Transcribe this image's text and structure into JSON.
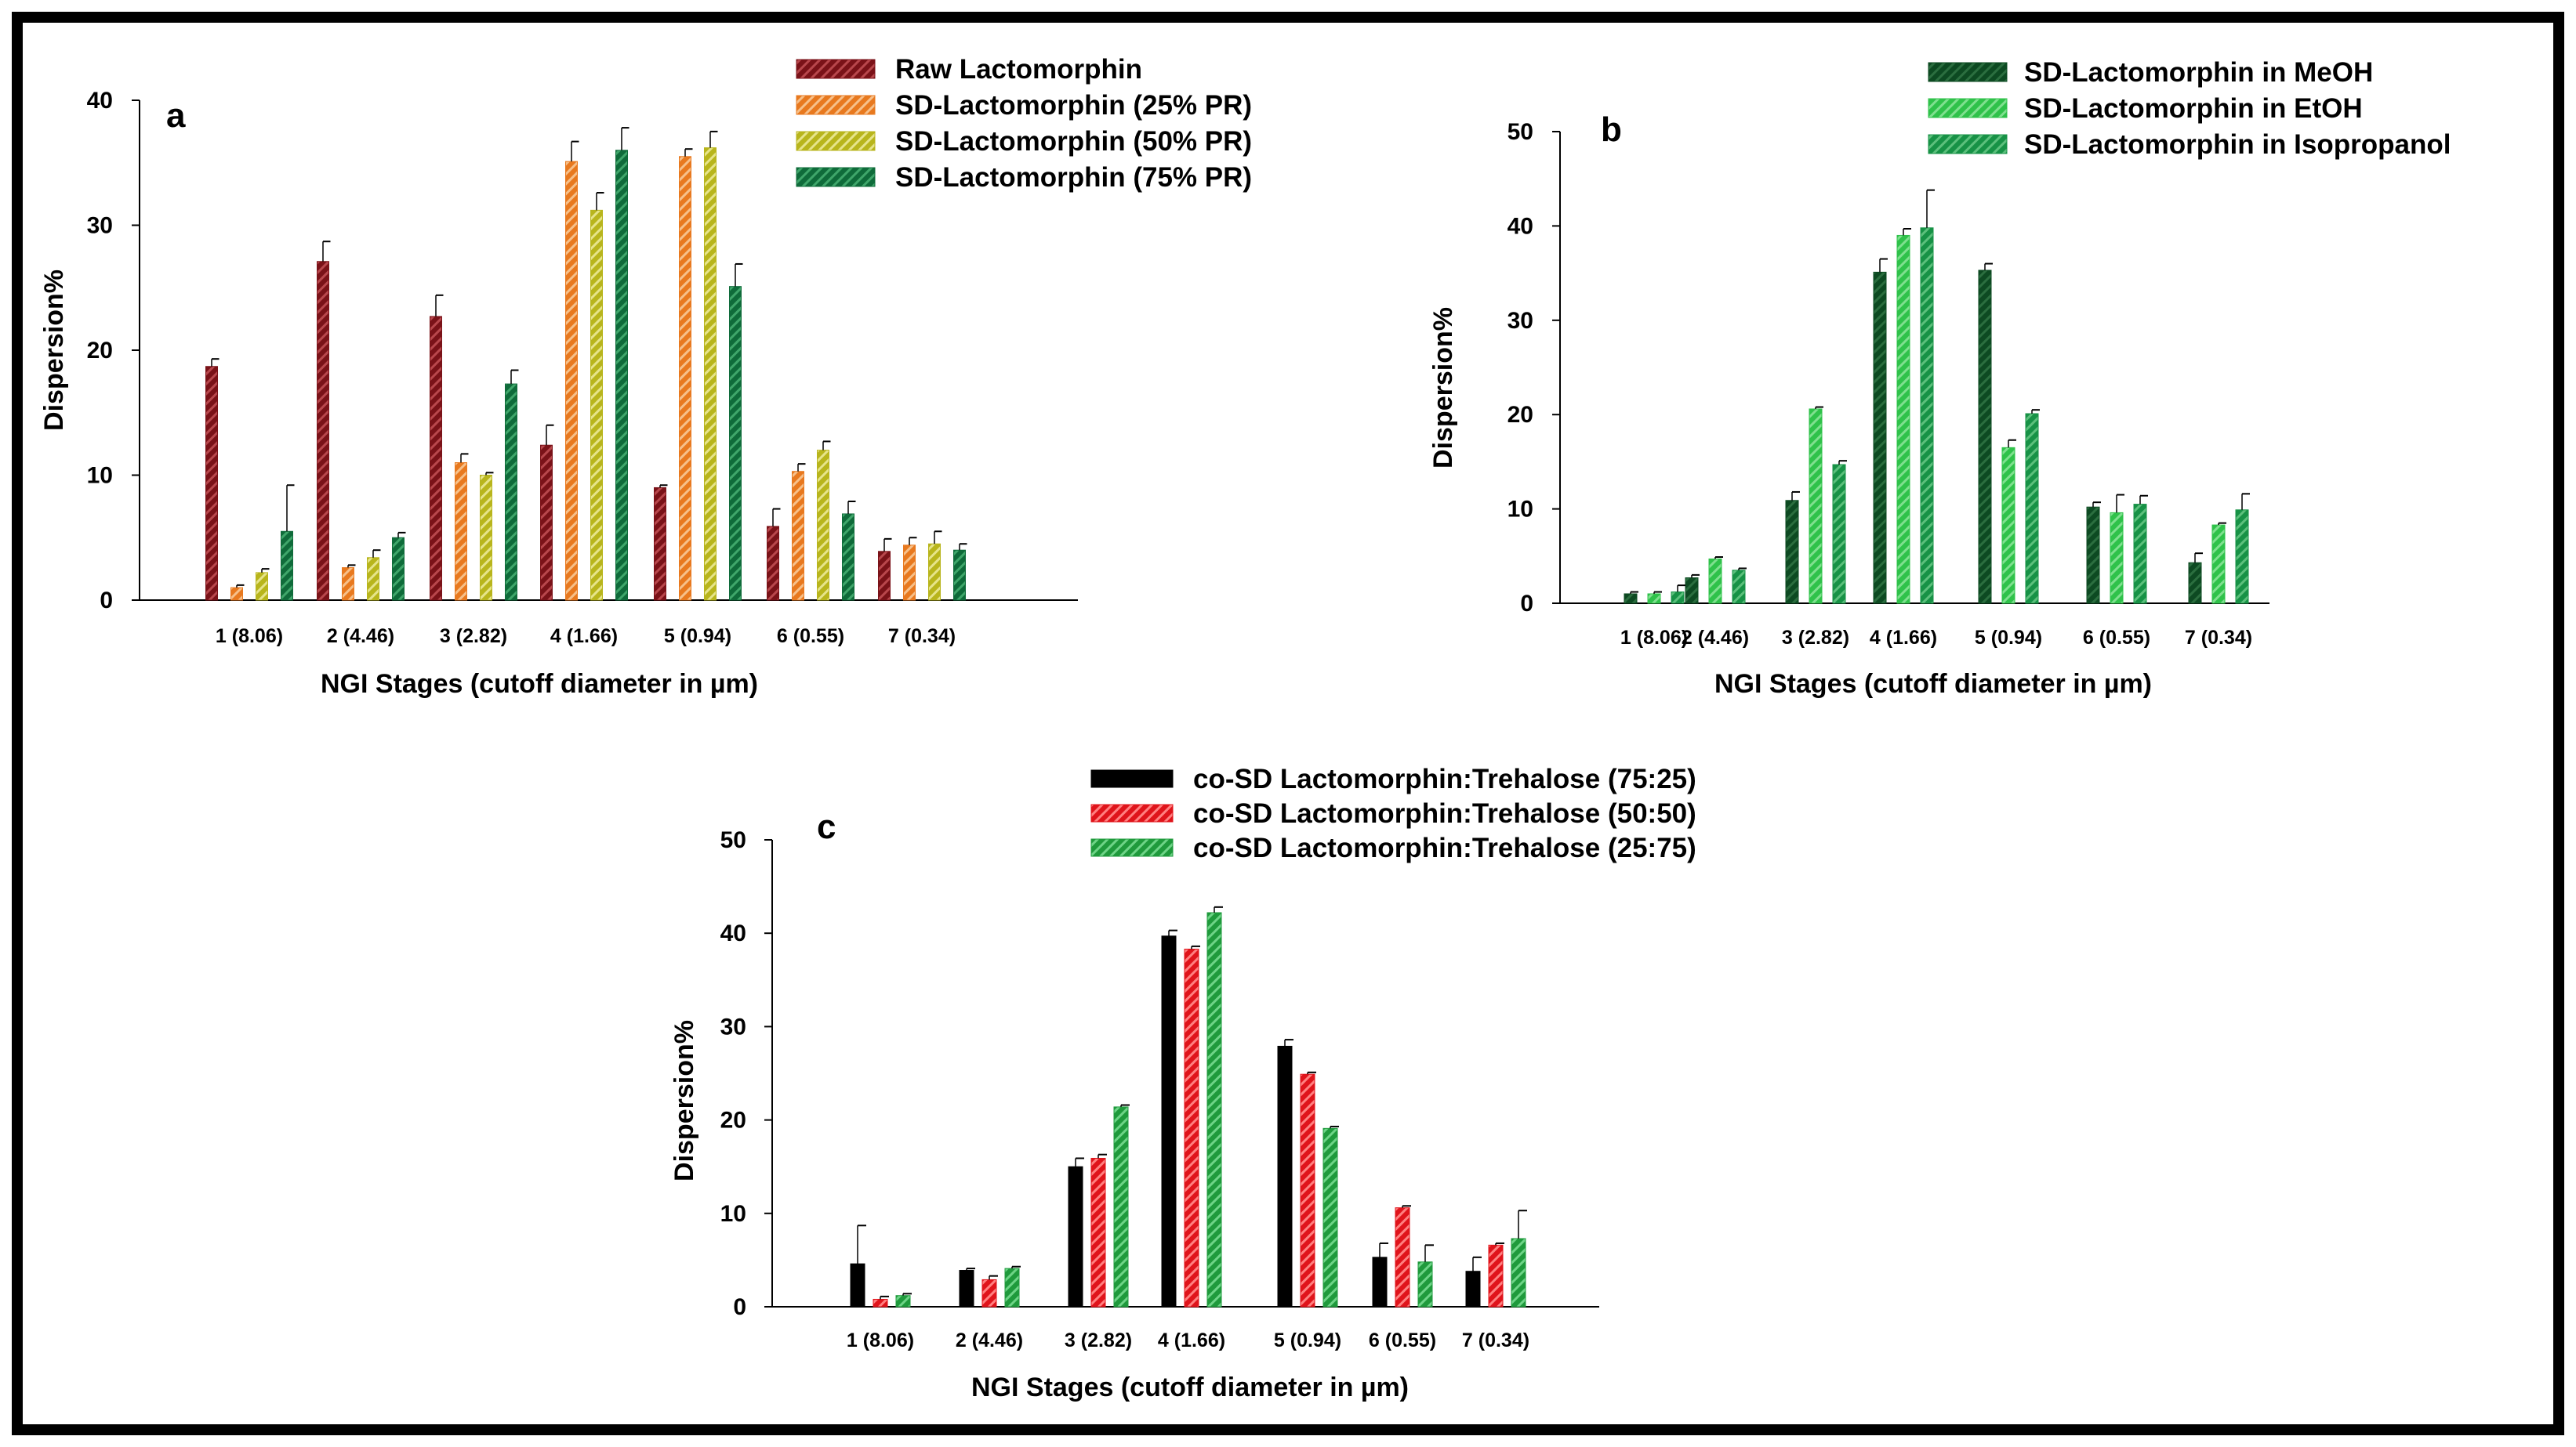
{
  "chart_data": [
    {
      "panel": "a",
      "type": "bar",
      "xlabel": "NGI Stages (cutoff diameter in µm)",
      "ylabel": "Dispersion%",
      "ylim": [
        0,
        40
      ],
      "yticks": [
        0,
        10,
        20,
        30,
        40
      ],
      "categories": [
        "1 (8.06)",
        "2 (4.46)",
        "3 (2.82)",
        "4 (1.66)",
        "5 (0.94)",
        "6 (0.55)",
        "7 (0.34)"
      ],
      "legend_position": "top-right",
      "series": [
        {
          "name": "Raw Lactomorphin",
          "color": "#7a1218",
          "stripe": "#b8474c",
          "values": [
            18.7,
            27.1,
            22.7,
            12.4,
            9.0,
            5.9,
            3.9
          ],
          "errors": [
            0.6,
            1.6,
            1.7,
            1.6,
            0.2,
            1.4,
            1.0
          ]
        },
        {
          "name": "SD-Lactomorphin (25% PR)",
          "color": "#e8791f",
          "stripe": "#f6c08a",
          "values": [
            1.0,
            2.6,
            11.0,
            35.1,
            35.5,
            10.3,
            4.4
          ],
          "errors": [
            0.2,
            0.2,
            0.7,
            1.6,
            0.6,
            0.6,
            0.6
          ]
        },
        {
          "name": "SD-Lactomorphin (50% PR)",
          "color": "#b8b51c",
          "stripe": "#e6e48a",
          "values": [
            2.2,
            3.4,
            10.0,
            31.2,
            36.2,
            12.0,
            4.5
          ],
          "errors": [
            0.3,
            0.6,
            0.2,
            1.4,
            1.3,
            0.7,
            1.0
          ]
        },
        {
          "name": "SD-Lactomorphin (75% PR)",
          "color": "#0f6b3a",
          "stripe": "#3fa66a",
          "values": [
            5.5,
            5.0,
            17.3,
            36.0,
            25.1,
            6.9,
            4.0
          ],
          "errors": [
            3.7,
            0.4,
            1.1,
            1.8,
            1.8,
            1.0,
            0.5
          ]
        }
      ]
    },
    {
      "panel": "b",
      "type": "bar",
      "xlabel": "NGI Stages (cutoff diameter in µm)",
      "ylabel": "Dispersion%",
      "ylim": [
        0,
        50
      ],
      "yticks": [
        0,
        10,
        20,
        30,
        40,
        50
      ],
      "categories": [
        "1 (8.06)",
        "2 (4.46)",
        "3 (2.82)",
        "4 (1.66)",
        "5 (0.94)",
        "6 (0.55)",
        "7 (0.34)"
      ],
      "legend_position": "top-right",
      "series": [
        {
          "name": "SD-Lactomorphin in MeOH",
          "color": "#0d4a22",
          "stripe": "#2b6e3f",
          "values": [
            1.0,
            2.7,
            10.9,
            35.1,
            35.3,
            10.2,
            4.3
          ],
          "errors": [
            0.2,
            0.3,
            0.9,
            1.4,
            0.7,
            0.5,
            1.0
          ]
        },
        {
          "name": "SD-Lactomorphin in EtOH",
          "color": "#2fc24a",
          "stripe": "#7fe08f",
          "values": [
            1.0,
            4.7,
            20.6,
            39.0,
            16.5,
            9.6,
            8.3
          ],
          "errors": [
            0.2,
            0.2,
            0.2,
            0.7,
            0.8,
            1.9,
            0.2
          ]
        },
        {
          "name": "SD-Lactomorphin in Isopropanol",
          "color": "#179246",
          "stripe": "#5cc07c",
          "values": [
            1.2,
            3.5,
            14.7,
            39.8,
            20.1,
            10.5,
            9.9
          ],
          "errors": [
            0.7,
            0.2,
            0.4,
            4.0,
            0.4,
            0.9,
            1.7
          ]
        }
      ]
    },
    {
      "panel": "c",
      "type": "bar",
      "xlabel": "NGI Stages (cutoff diameter in µm)",
      "ylabel": "Dispersion%",
      "ylim": [
        0,
        50
      ],
      "yticks": [
        0,
        10,
        20,
        30,
        40,
        50
      ],
      "categories": [
        "1 (8.06)",
        "2 (4.46)",
        "3 (2.82)",
        "4 (1.66)",
        "5 (0.94)",
        "6 (0.55)",
        "7 (0.34)"
      ],
      "legend_position": "top",
      "series": [
        {
          "name": "co-SD Lactomorphin:Trehalose (75:25)",
          "color": "#000000",
          "stripe": "#000000",
          "values": [
            4.6,
            3.9,
            15.0,
            39.7,
            27.9,
            5.3,
            3.8
          ],
          "errors": [
            4.1,
            0.2,
            0.9,
            0.6,
            0.7,
            1.5,
            1.5
          ]
        },
        {
          "name": "co-SD Lactomorphin:Trehalose (50:50)",
          "color": "#e0141b",
          "stripe": "#ff8080",
          "values": [
            0.8,
            2.9,
            15.9,
            38.3,
            24.9,
            10.6,
            6.6
          ],
          "errors": [
            0.3,
            0.4,
            0.4,
            0.3,
            0.2,
            0.2,
            0.2
          ]
        },
        {
          "name": "co-SD Lactomorphin:Trehalose (25:75)",
          "color": "#1f9a3c",
          "stripe": "#6ed487",
          "values": [
            1.2,
            4.1,
            21.4,
            42.2,
            19.1,
            4.8,
            7.3
          ],
          "errors": [
            0.2,
            0.2,
            0.2,
            0.6,
            0.2,
            1.8,
            3.0
          ]
        }
      ]
    }
  ]
}
